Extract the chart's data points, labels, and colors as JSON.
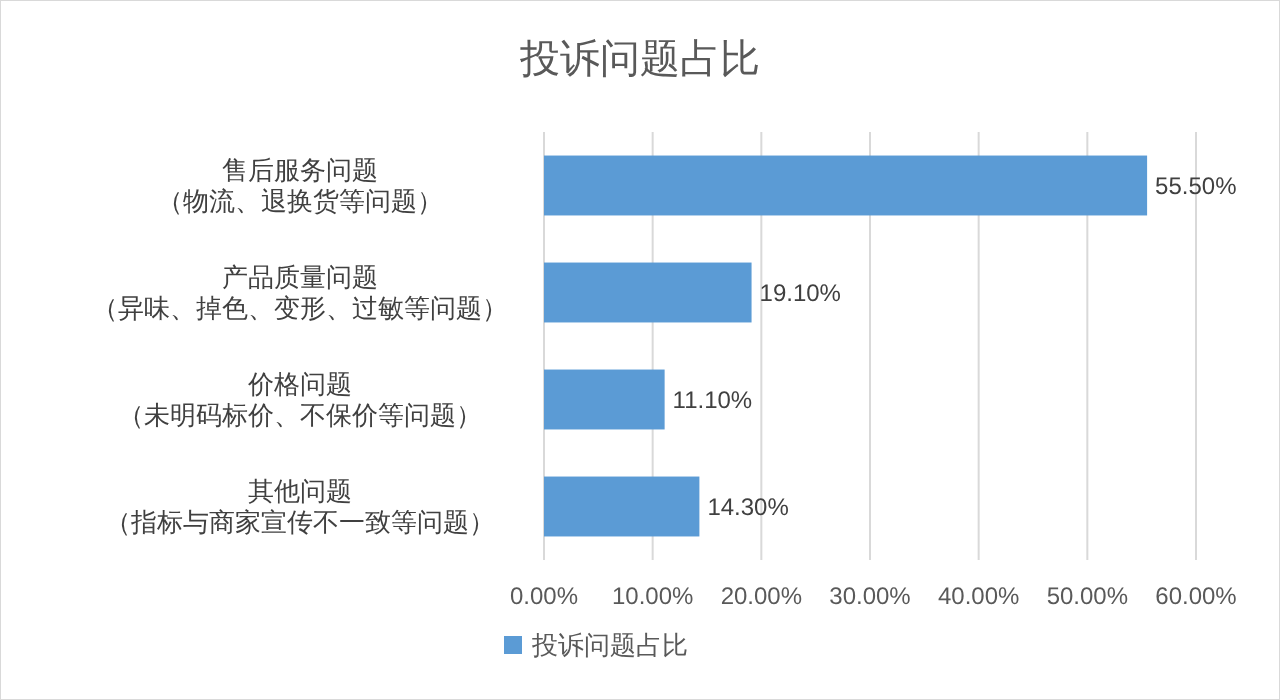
{
  "chart_data": {
    "type": "bar",
    "orientation": "horizontal",
    "title": "投诉问题占比",
    "categories": [
      "售后服务问题（物流、退换货等问题）",
      "产品质量问题（异味、掉色、变形、过敏等问题）",
      "价格问题（未明码标价、不保价等问题）",
      "其他问题（指标与商家宣传不一致等问题）"
    ],
    "series": [
      {
        "name": "投诉问题占比",
        "color": "#5b9bd5",
        "values": [
          55.5,
          19.1,
          11.1,
          14.3
        ],
        "value_labels": [
          "55.50%",
          "19.10%",
          "11.10%",
          "14.30%"
        ]
      }
    ],
    "xlim": [
      0,
      60
    ],
    "xticks": [
      {
        "value": 0,
        "label": "0.00%"
      },
      {
        "value": 10,
        "label": "10.00%"
      },
      {
        "value": 20,
        "label": "20.00%"
      },
      {
        "value": 30,
        "label": "30.00%"
      },
      {
        "value": 40,
        "label": "40.00%"
      },
      {
        "value": 50,
        "label": "50.00%"
      },
      {
        "value": 60,
        "label": "60.00%"
      }
    ],
    "grid": "x",
    "legend": "bottom"
  }
}
